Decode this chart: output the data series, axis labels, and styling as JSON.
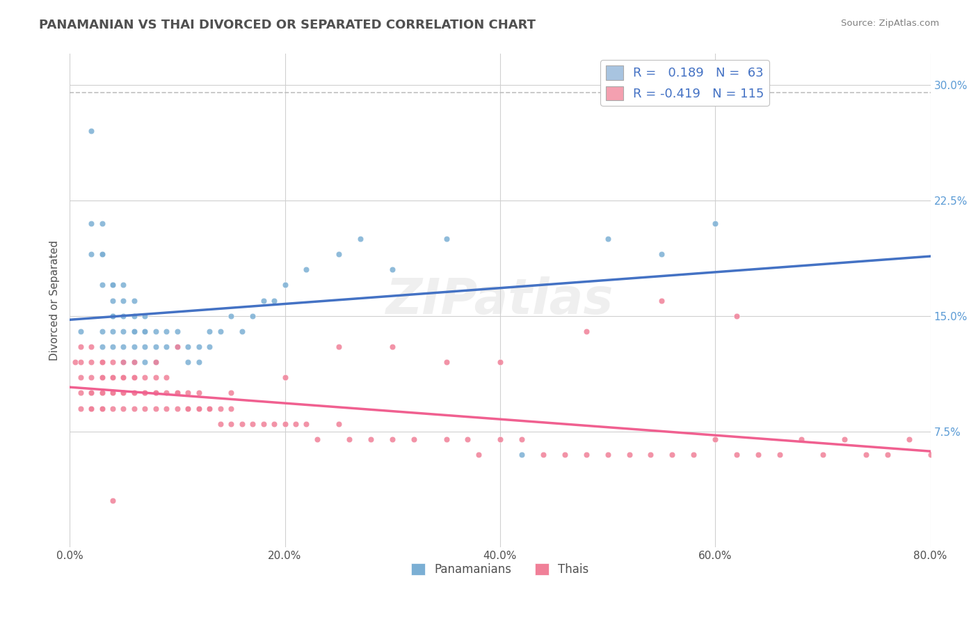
{
  "title": "PANAMANIAN VS THAI DIVORCED OR SEPARATED CORRELATION CHART",
  "source_text": "Source: ZipAtlas.com",
  "xlabel": "",
  "ylabel": "Divorced or Separated",
  "xlim": [
    0.0,
    0.8
  ],
  "ylim": [
    0.0,
    0.32
  ],
  "xticks": [
    0.0,
    0.2,
    0.4,
    0.6,
    0.8
  ],
  "xticklabels": [
    "0.0%",
    "20.0%",
    "40.0%",
    "60.0%",
    "80.0%"
  ],
  "yticks": [
    0.075,
    0.15,
    0.225,
    0.3
  ],
  "yticklabels": [
    "7.5%",
    "15.0%",
    "22.5%",
    "30.0%"
  ],
  "blue_R": 0.189,
  "blue_N": 63,
  "pink_R": -0.419,
  "pink_N": 115,
  "blue_color": "#a8c4e0",
  "pink_color": "#f4a0b0",
  "blue_line_color": "#4472c4",
  "pink_line_color": "#f06090",
  "blue_marker_color": "#7bafd4",
  "pink_marker_color": "#f08098",
  "legend_blue_label": "Panamanians",
  "legend_pink_label": "Thais",
  "watermark": "ZIPatlas",
  "background_color": "#ffffff",
  "title_color": "#505050",
  "title_fontsize": 13,
  "blue_scatter_x": [
    0.01,
    0.02,
    0.02,
    0.02,
    0.03,
    0.03,
    0.03,
    0.03,
    0.03,
    0.03,
    0.04,
    0.04,
    0.04,
    0.04,
    0.04,
    0.04,
    0.04,
    0.05,
    0.05,
    0.05,
    0.05,
    0.05,
    0.05,
    0.06,
    0.06,
    0.06,
    0.06,
    0.06,
    0.06,
    0.07,
    0.07,
    0.07,
    0.07,
    0.07,
    0.08,
    0.08,
    0.08,
    0.09,
    0.09,
    0.1,
    0.1,
    0.11,
    0.11,
    0.12,
    0.12,
    0.13,
    0.13,
    0.14,
    0.15,
    0.16,
    0.17,
    0.18,
    0.19,
    0.2,
    0.22,
    0.25,
    0.27,
    0.3,
    0.35,
    0.42,
    0.5,
    0.55,
    0.6
  ],
  "blue_scatter_y": [
    0.14,
    0.27,
    0.21,
    0.19,
    0.21,
    0.19,
    0.19,
    0.17,
    0.14,
    0.13,
    0.17,
    0.17,
    0.16,
    0.15,
    0.15,
    0.14,
    0.13,
    0.17,
    0.16,
    0.15,
    0.14,
    0.13,
    0.12,
    0.16,
    0.15,
    0.14,
    0.14,
    0.13,
    0.12,
    0.15,
    0.14,
    0.14,
    0.13,
    0.12,
    0.14,
    0.13,
    0.12,
    0.14,
    0.13,
    0.14,
    0.13,
    0.13,
    0.12,
    0.13,
    0.12,
    0.14,
    0.13,
    0.14,
    0.15,
    0.14,
    0.15,
    0.16,
    0.16,
    0.17,
    0.18,
    0.19,
    0.2,
    0.18,
    0.2,
    0.06,
    0.2,
    0.19,
    0.21
  ],
  "pink_scatter_x": [
    0.005,
    0.01,
    0.01,
    0.01,
    0.01,
    0.01,
    0.02,
    0.02,
    0.02,
    0.02,
    0.02,
    0.02,
    0.02,
    0.03,
    0.03,
    0.03,
    0.03,
    0.03,
    0.03,
    0.03,
    0.03,
    0.04,
    0.04,
    0.04,
    0.04,
    0.04,
    0.04,
    0.05,
    0.05,
    0.05,
    0.05,
    0.05,
    0.05,
    0.06,
    0.06,
    0.06,
    0.06,
    0.06,
    0.07,
    0.07,
    0.07,
    0.07,
    0.08,
    0.08,
    0.08,
    0.08,
    0.09,
    0.09,
    0.09,
    0.1,
    0.1,
    0.1,
    0.11,
    0.11,
    0.11,
    0.12,
    0.12,
    0.12,
    0.13,
    0.13,
    0.14,
    0.14,
    0.15,
    0.15,
    0.16,
    0.17,
    0.18,
    0.19,
    0.2,
    0.21,
    0.22,
    0.23,
    0.25,
    0.26,
    0.28,
    0.3,
    0.32,
    0.35,
    0.37,
    0.38,
    0.4,
    0.42,
    0.44,
    0.46,
    0.48,
    0.5,
    0.52,
    0.54,
    0.56,
    0.58,
    0.6,
    0.62,
    0.64,
    0.66,
    0.68,
    0.7,
    0.72,
    0.74,
    0.76,
    0.78,
    0.8,
    0.62,
    0.55,
    0.48,
    0.4,
    0.35,
    0.3,
    0.25,
    0.2,
    0.15,
    0.1,
    0.08,
    0.06,
    0.05,
    0.04
  ],
  "pink_scatter_y": [
    0.12,
    0.13,
    0.12,
    0.11,
    0.1,
    0.09,
    0.13,
    0.12,
    0.11,
    0.1,
    0.1,
    0.09,
    0.09,
    0.12,
    0.12,
    0.11,
    0.11,
    0.1,
    0.1,
    0.09,
    0.09,
    0.12,
    0.11,
    0.11,
    0.1,
    0.1,
    0.09,
    0.12,
    0.11,
    0.11,
    0.1,
    0.1,
    0.09,
    0.11,
    0.11,
    0.1,
    0.1,
    0.09,
    0.11,
    0.1,
    0.1,
    0.09,
    0.11,
    0.1,
    0.1,
    0.09,
    0.11,
    0.1,
    0.09,
    0.1,
    0.1,
    0.09,
    0.1,
    0.09,
    0.09,
    0.1,
    0.09,
    0.09,
    0.09,
    0.09,
    0.09,
    0.08,
    0.09,
    0.08,
    0.08,
    0.08,
    0.08,
    0.08,
    0.08,
    0.08,
    0.08,
    0.07,
    0.08,
    0.07,
    0.07,
    0.07,
    0.07,
    0.07,
    0.07,
    0.06,
    0.07,
    0.07,
    0.06,
    0.06,
    0.06,
    0.06,
    0.06,
    0.06,
    0.06,
    0.06,
    0.07,
    0.06,
    0.06,
    0.06,
    0.07,
    0.06,
    0.07,
    0.06,
    0.06,
    0.07,
    0.06,
    0.15,
    0.16,
    0.14,
    0.12,
    0.12,
    0.13,
    0.13,
    0.11,
    0.1,
    0.13,
    0.12,
    0.12,
    0.11,
    0.03
  ]
}
